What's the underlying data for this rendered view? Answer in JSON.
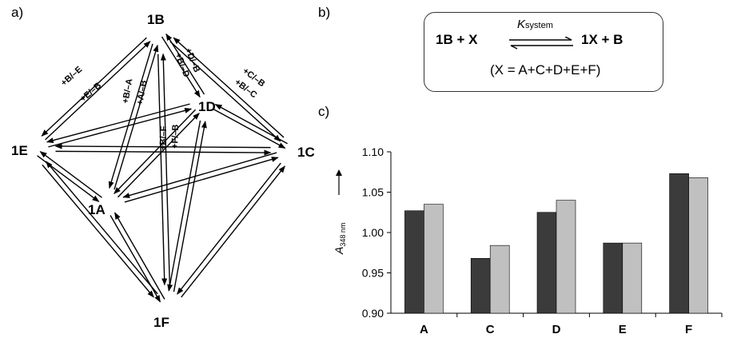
{
  "panel_labels": {
    "a": "a)",
    "b": "b)",
    "c": "c)"
  },
  "diagram": {
    "nodes": [
      {
        "id": "1B",
        "label": "1B"
      },
      {
        "id": "1D",
        "label": "1D"
      },
      {
        "id": "1E",
        "label": "1E"
      },
      {
        "id": "1C",
        "label": "1C"
      },
      {
        "id": "1A",
        "label": "1A"
      },
      {
        "id": "1F",
        "label": "1F"
      }
    ],
    "edge_labels": {
      "e_b_plus": "+B/–E",
      "e_b_minus": "+E/–B",
      "a_b_plus": "+B/–A",
      "a_b_minus": "+A/–B",
      "d_b_minus": "+D/–B",
      "d_b_plus": "+B/–D",
      "c_b_minus": "+C/–B",
      "c_b_plus": "+B/–C",
      "f_b_plus": "+B/–F",
      "f_b_minus": "+F/–B"
    }
  },
  "equation": {
    "left": "1B + X",
    "right": "1X + B",
    "k_symbol": "K",
    "k_subscript": "system",
    "definition": "(X = A+C+D+E+F)"
  },
  "chart_data": {
    "type": "bar",
    "categories": [
      "A",
      "C",
      "D",
      "E",
      "F"
    ],
    "series": [
      {
        "color": "#3b3b3b",
        "values": [
          1.027,
          0.968,
          1.025,
          0.987,
          1.073
        ]
      },
      {
        "color": "#c0c0c0",
        "values": [
          1.035,
          0.984,
          1.04,
          0.987,
          1.068
        ]
      }
    ],
    "ylim": [
      0.9,
      1.1
    ],
    "yticks": [
      "0.90",
      "0.95",
      "1.00",
      "1.05",
      "1.10"
    ],
    "ylabel_main": "A",
    "ylabel_sub": "348 nm",
    "xlabel": "",
    "title": "",
    "grid": false
  }
}
